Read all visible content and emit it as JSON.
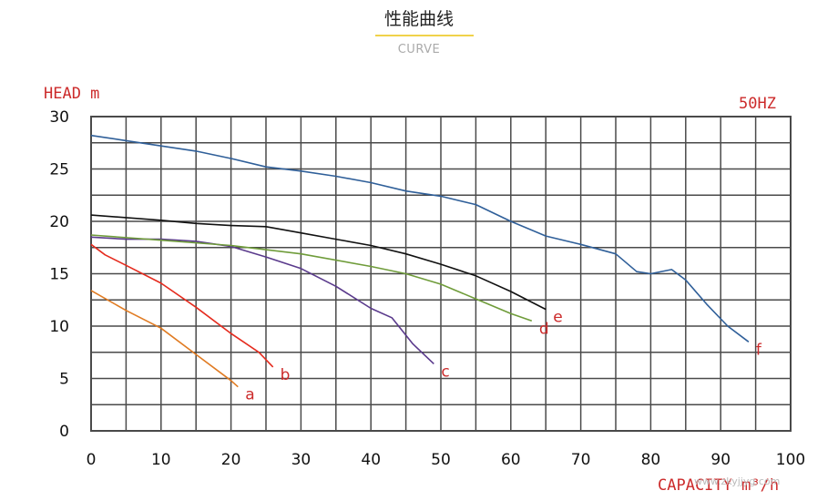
{
  "header": {
    "title": "性能曲线",
    "subtitle": "CURVE"
  },
  "watermark": "www.zkyjjyg.com",
  "chart_data": {
    "type": "line",
    "title": "",
    "xlabel": "CAPACITY m³/h",
    "ylabel": "HEAD m",
    "frequency_label": "50HZ",
    "xlim": [
      0,
      100
    ],
    "ylim": [
      0,
      30
    ],
    "xticks": [
      0,
      10,
      20,
      30,
      40,
      50,
      60,
      70,
      80,
      90,
      100
    ],
    "yticks": [
      0,
      5,
      10,
      15,
      20,
      25,
      30
    ],
    "grid": true,
    "grid_x_step": 5,
    "grid_y_step": 2.5,
    "series": [
      {
        "name": "a",
        "color": "#e07b22",
        "x": [
          0,
          5,
          10,
          15,
          20,
          21
        ],
        "y": [
          13.4,
          11.5,
          9.8,
          7.3,
          4.8,
          4.2
        ]
      },
      {
        "name": "b",
        "color": "#e52b1e",
        "x": [
          0,
          2,
          5,
          10,
          15,
          20,
          24,
          26
        ],
        "y": [
          17.8,
          16.8,
          15.8,
          14.1,
          11.8,
          9.3,
          7.5,
          6.1
        ]
      },
      {
        "name": "c",
        "color": "#5a3a8c",
        "x": [
          0,
          5,
          10,
          15,
          20,
          25,
          30,
          35,
          40,
          43,
          46,
          49
        ],
        "y": [
          18.5,
          18.3,
          18.3,
          18.1,
          17.6,
          16.6,
          15.5,
          13.8,
          11.7,
          10.8,
          8.3,
          6.4
        ]
      },
      {
        "name": "d",
        "color": "#6f9c3a",
        "x": [
          0,
          10,
          20,
          30,
          40,
          45,
          50,
          55,
          60,
          63
        ],
        "y": [
          18.7,
          18.2,
          17.7,
          16.9,
          15.7,
          15.0,
          14.0,
          12.6,
          11.2,
          10.5
        ]
      },
      {
        "name": "e",
        "color": "#111111",
        "x": [
          0,
          10,
          15,
          20,
          25,
          30,
          35,
          40,
          45,
          50,
          55,
          60,
          65
        ],
        "y": [
          20.6,
          20.1,
          19.8,
          19.6,
          19.5,
          18.9,
          18.3,
          17.7,
          16.9,
          15.9,
          14.8,
          13.3,
          11.6
        ]
      },
      {
        "name": "f",
        "color": "#2f5f99",
        "x": [
          0,
          5,
          10,
          15,
          20,
          25,
          30,
          35,
          40,
          45,
          50,
          55,
          60,
          65,
          70,
          75,
          78,
          80,
          83,
          85,
          88,
          91,
          94
        ],
        "y": [
          28.2,
          27.7,
          27.2,
          26.7,
          26.0,
          25.2,
          24.8,
          24.3,
          23.7,
          22.9,
          22.4,
          21.6,
          20.0,
          18.6,
          17.8,
          16.9,
          15.2,
          15.0,
          15.4,
          14.4,
          12.1,
          10.0,
          8.5
        ]
      }
    ]
  }
}
